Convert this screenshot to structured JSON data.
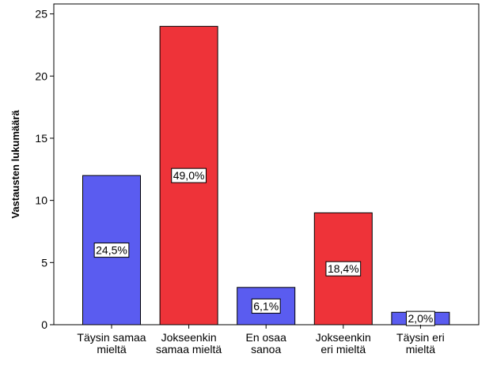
{
  "chart_data": {
    "type": "bar",
    "title": "",
    "xlabel": "",
    "ylabel": "Vastausten lukumäärä",
    "ylim": [
      0,
      25
    ],
    "yticks": [
      0,
      5,
      10,
      15,
      20,
      25
    ],
    "grid": false,
    "legend": "none",
    "categories": [
      [
        "Täysin samaa",
        "mieltä"
      ],
      [
        "Jokseenkin",
        "samaa mieltä"
      ],
      [
        "En osaa",
        "sanoa"
      ],
      [
        "Jokseenkin",
        "eri mieltä"
      ],
      [
        "Täysin eri",
        "mieltä"
      ]
    ],
    "values": [
      12,
      24,
      3,
      9,
      1
    ],
    "data_labels": [
      "24,5%",
      "49,0%",
      "6,1%",
      "18,4%",
      "2,0%"
    ],
    "bar_colors": [
      "#5a5cf0",
      "#ee3339",
      "#5a5cf0",
      "#ee3339",
      "#5a5cf0"
    ]
  },
  "colors": {
    "plot_border": "#000000",
    "bar_stroke": "#000000",
    "label_box": "#ffffff"
  }
}
